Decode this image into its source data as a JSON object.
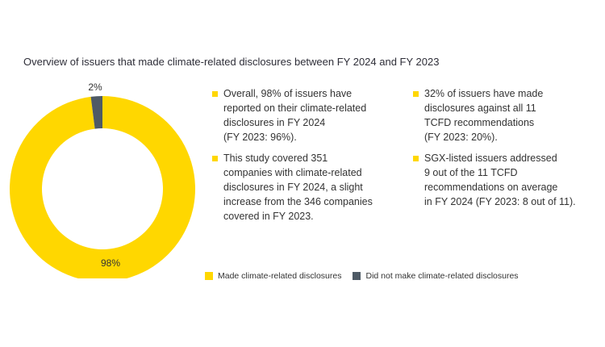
{
  "title": "Overview of issuers that made climate-related disclosures between FY 2024 and FY 2023",
  "chart_data": {
    "type": "pie",
    "subtype": "donut",
    "title": "Overview of issuers that made climate-related disclosures between FY 2024 and FY 2023",
    "categories": [
      "Made climate-related disclosures",
      "Did not make climate-related disclosures"
    ],
    "values": [
      98,
      2
    ],
    "unit": "%",
    "data_labels": [
      "98%",
      "2%"
    ],
    "colors": [
      "#ffd700",
      "#4e5a65"
    ],
    "legend_position": "bottom"
  },
  "bullets": [
    {
      "text": "Overall, 98% of issuers have\nreported on their climate-related\ndisclosures in FY 2024\n(FY 2023: 96%)."
    },
    {
      "text": "This study covered 351\ncompanies with climate-related\ndisclosures in FY 2024, a slight\nincrease from the 346 companies\ncovered in FY 2023."
    },
    {
      "text": "32% of issuers have made\ndisclosures against all 11\nTCFD recommendations\n(FY 2023: 20%)."
    },
    {
      "text": "SGX-listed issuers addressed\n9 out of the 11 TCFD\nrecommendations on average\nin FY 2024 (FY 2023: 8 out of 11)."
    }
  ],
  "legend": [
    {
      "label": "Made climate-related disclosures",
      "color": "#ffd700"
    },
    {
      "label": "Did not make climate-related disclosures",
      "color": "#4e5a65"
    }
  ]
}
